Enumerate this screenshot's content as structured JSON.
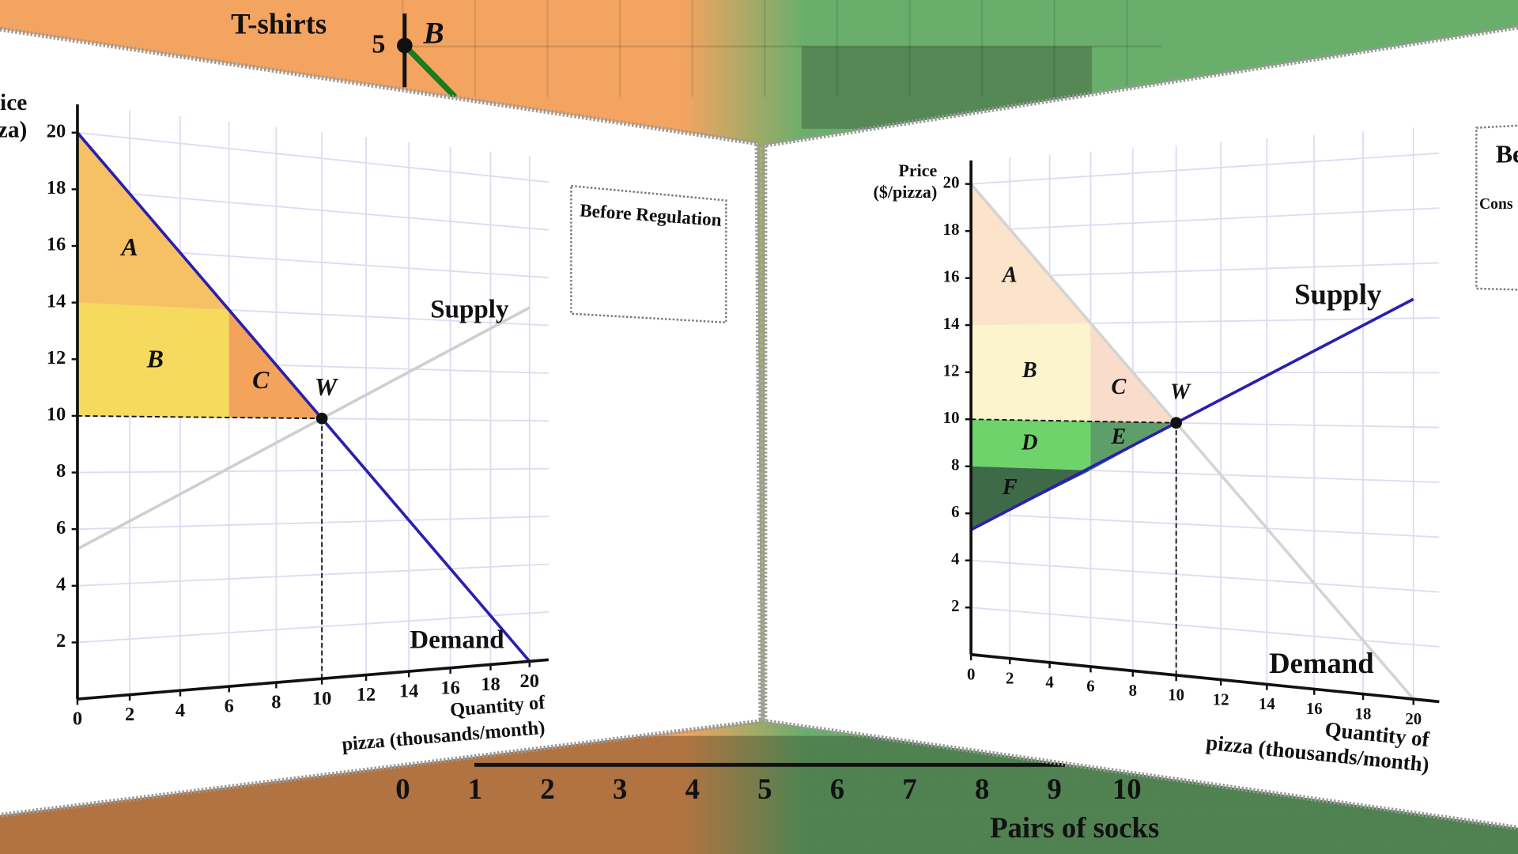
{
  "background": {
    "y_label": "T-shirts",
    "point_label": "B",
    "yticks": [
      5
    ],
    "xticks": [
      0,
      1,
      2,
      3,
      4,
      5,
      6,
      7,
      8,
      9,
      10
    ],
    "x_label": "Pairs of socks"
  },
  "chart_data": [
    {
      "type": "line",
      "y_label": [
        "Price",
        "($/pizza)"
      ],
      "x_label": [
        "Quantity of",
        "pizza (thousands/month)"
      ],
      "xlim": [
        0,
        20
      ],
      "ylim": [
        0,
        20
      ],
      "xticks": [
        0,
        2,
        4,
        6,
        8,
        10,
        12,
        14,
        16,
        18,
        20
      ],
      "yticks": [
        2,
        4,
        6,
        8,
        10,
        12,
        14,
        16,
        18,
        20
      ],
      "grid": true,
      "series": [
        {
          "name": "Demand",
          "color": "#2a1fae",
          "label_color": "#111111",
          "x": [
            0,
            20
          ],
          "values": [
            20,
            0
          ]
        },
        {
          "name": "Supply",
          "color": "#cfcfcf",
          "label_color": "#b8b8b8",
          "x": [
            0,
            20
          ],
          "values": [
            5.3,
            14.7
          ]
        }
      ],
      "regions": [
        {
          "name": "A",
          "color": "#f6c164",
          "label_color": "#111111",
          "x": [
            0,
            0,
            6
          ],
          "y": [
            20,
            14,
            14
          ]
        },
        {
          "name": "B",
          "color": "#f6da5e",
          "label_color": "#111111",
          "x": [
            0,
            0,
            6,
            6
          ],
          "y": [
            10,
            14,
            14,
            10
          ]
        },
        {
          "name": "C",
          "color": "#f3a35c",
          "label_color": "#111111",
          "x": [
            6,
            6,
            10
          ],
          "y": [
            14,
            10,
            10
          ]
        }
      ],
      "point": {
        "name": "W",
        "x": 10,
        "y": 10
      },
      "box": {
        "title": "Before Regulation"
      }
    },
    {
      "type": "line",
      "y_label": [
        "Price",
        "($/pizza)"
      ],
      "x_label": [
        "Quantity of",
        "pizza (thousands/month)"
      ],
      "xlim": [
        0,
        20
      ],
      "ylim": [
        0,
        20
      ],
      "xticks": [
        0,
        2,
        4,
        6,
        8,
        10,
        12,
        14,
        16,
        18,
        20
      ],
      "yticks": [
        2,
        4,
        6,
        8,
        10,
        12,
        14,
        16,
        18,
        20
      ],
      "grid": true,
      "series": [
        {
          "name": "Demand",
          "color": "#d4d4d4",
          "label_color": "#b8b8b8",
          "x": [
            0,
            20
          ],
          "values": [
            20,
            0
          ]
        },
        {
          "name": "Supply",
          "color": "#2a1fae",
          "label_color": "#111111",
          "x": [
            0,
            20
          ],
          "values": [
            5.3,
            14.7
          ]
        }
      ],
      "regions": [
        {
          "name": "A",
          "color": "#fbe4c9",
          "label_color": "#b0b0b0",
          "x": [
            0,
            0,
            6
          ],
          "y": [
            20,
            14,
            14
          ]
        },
        {
          "name": "B",
          "color": "#fbf4cd",
          "label_color": "#b0b0b0",
          "x": [
            0,
            0,
            6,
            6
          ],
          "y": [
            10,
            14,
            14,
            10
          ]
        },
        {
          "name": "C",
          "color": "#fadccd",
          "label_color": "#b0b0b0",
          "x": [
            6,
            6,
            10
          ],
          "y": [
            14,
            10,
            10
          ]
        },
        {
          "name": "D",
          "color": "#6dd36a",
          "label_color": "#111111",
          "x": [
            0,
            0,
            6,
            6
          ],
          "y": [
            8,
            10,
            10,
            8
          ]
        },
        {
          "name": "E",
          "color": "#5e9e68",
          "label_color": "#111111",
          "x": [
            6,
            6,
            10
          ],
          "y": [
            8,
            10,
            10
          ]
        },
        {
          "name": "F",
          "color": "#3f6a47",
          "label_color": "#111111",
          "x": [
            0,
            0,
            6
          ],
          "y": [
            5.3,
            8,
            8
          ]
        }
      ],
      "point": {
        "name": "W",
        "x": 10,
        "y": 10
      },
      "box": {
        "title": "Be",
        "text": "Cons"
      }
    }
  ]
}
